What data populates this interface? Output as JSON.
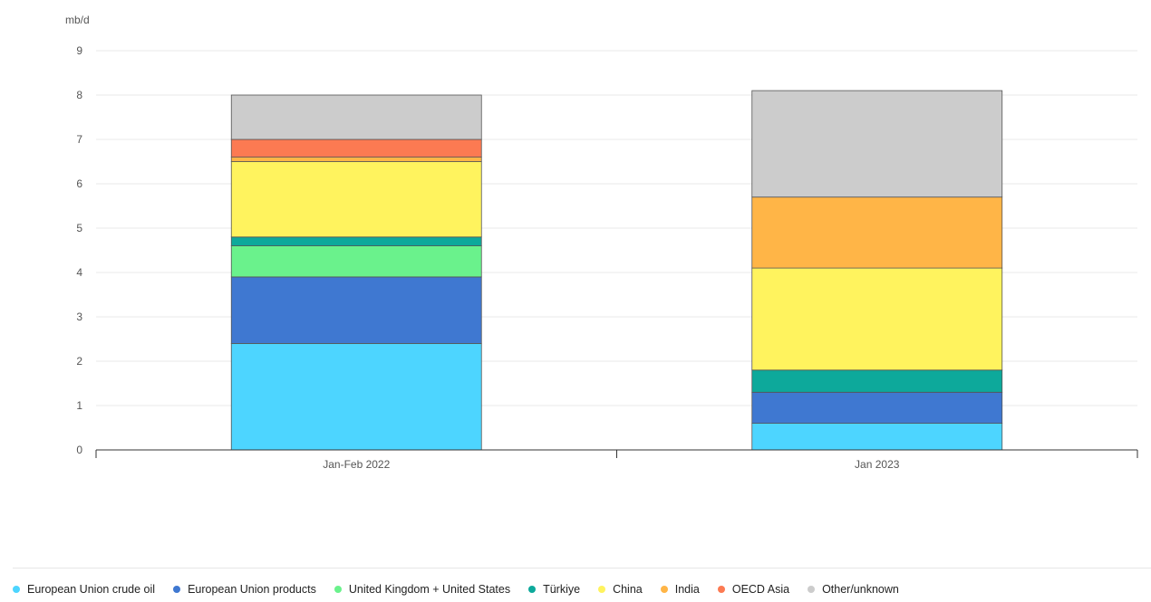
{
  "chart_data": {
    "type": "bar",
    "stacked": true,
    "unit_label": "mb/d",
    "categories": [
      "Jan-Feb 2022",
      "Jan 2023"
    ],
    "ylim": [
      0,
      9
    ],
    "yticks": [
      0,
      1,
      2,
      3,
      4,
      5,
      6,
      7,
      8,
      9
    ],
    "grid": true,
    "legend_position": "bottom-left",
    "series": [
      {
        "name": "European Union crude oil",
        "color": "#4dd5ff",
        "values": [
          2.4,
          0.6
        ]
      },
      {
        "name": "European Union products",
        "color": "#3f78d1",
        "values": [
          1.5,
          0.7
        ]
      },
      {
        "name": "United Kingdom + United States",
        "color": "#6af28c",
        "values": [
          0.7,
          0.0
        ]
      },
      {
        "name": "Türkiye",
        "color": "#0da99b",
        "values": [
          0.2,
          0.5
        ]
      },
      {
        "name": "China",
        "color": "#fff35e",
        "values": [
          1.7,
          2.3
        ]
      },
      {
        "name": "India",
        "color": "#ffb547",
        "values": [
          0.1,
          1.6
        ]
      },
      {
        "name": "OECD Asia",
        "color": "#fc7a52",
        "values": [
          0.4,
          0.0
        ]
      },
      {
        "name": "Other/unknown",
        "color": "#cccccc",
        "values": [
          1.0,
          2.4
        ]
      }
    ]
  }
}
